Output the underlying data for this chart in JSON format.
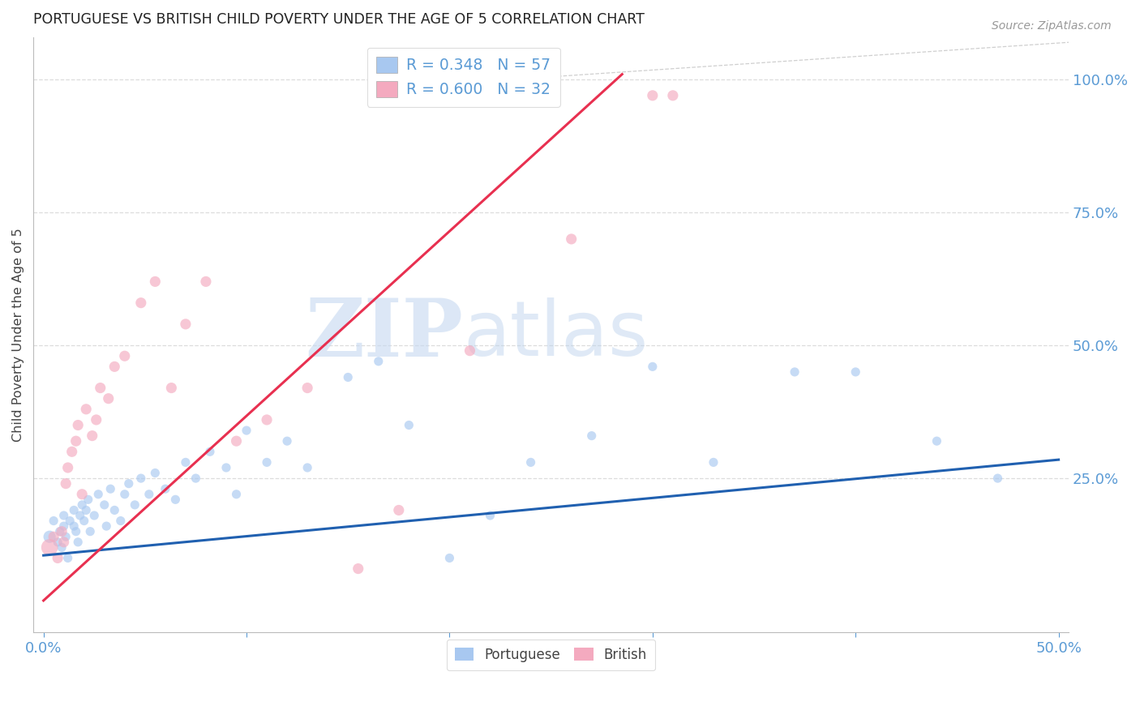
{
  "title": "PORTUGUESE VS BRITISH CHILD POVERTY UNDER THE AGE OF 5 CORRELATION CHART",
  "source": "Source: ZipAtlas.com",
  "ylabel_label": "Child Poverty Under the Age of 5",
  "xlim": [
    -0.005,
    0.505
  ],
  "ylim": [
    -0.04,
    1.08
  ],
  "xticks": [
    0.0,
    0.1,
    0.2,
    0.3,
    0.4,
    0.5
  ],
  "xtick_labels": [
    "0.0%",
    "",
    "",
    "",
    "",
    "50.0%"
  ],
  "ytick_right_labels": [
    "100.0%",
    "75.0%",
    "50.0%",
    "25.0%"
  ],
  "ytick_right_values": [
    1.0,
    0.75,
    0.5,
    0.25
  ],
  "portuguese_color": "#A8C8F0",
  "british_color": "#F4AABF",
  "trend_portuguese_color": "#2060B0",
  "trend_british_color": "#E83050",
  "legend_r_portuguese": "R = 0.348",
  "legend_n_portuguese": "N = 57",
  "legend_r_british": "R = 0.600",
  "legend_n_british": "N = 32",
  "portuguese_x": [
    0.003,
    0.005,
    0.007,
    0.008,
    0.009,
    0.01,
    0.01,
    0.011,
    0.012,
    0.013,
    0.015,
    0.015,
    0.016,
    0.017,
    0.018,
    0.019,
    0.02,
    0.021,
    0.022,
    0.023,
    0.025,
    0.027,
    0.03,
    0.031,
    0.033,
    0.035,
    0.038,
    0.04,
    0.042,
    0.045,
    0.048,
    0.052,
    0.055,
    0.06,
    0.065,
    0.07,
    0.075,
    0.082,
    0.09,
    0.095,
    0.1,
    0.11,
    0.12,
    0.13,
    0.15,
    0.165,
    0.18,
    0.2,
    0.22,
    0.24,
    0.27,
    0.3,
    0.33,
    0.37,
    0.4,
    0.44,
    0.47
  ],
  "portuguese_y": [
    0.14,
    0.17,
    0.13,
    0.15,
    0.12,
    0.16,
    0.18,
    0.14,
    0.1,
    0.17,
    0.16,
    0.19,
    0.15,
    0.13,
    0.18,
    0.2,
    0.17,
    0.19,
    0.21,
    0.15,
    0.18,
    0.22,
    0.2,
    0.16,
    0.23,
    0.19,
    0.17,
    0.22,
    0.24,
    0.2,
    0.25,
    0.22,
    0.26,
    0.23,
    0.21,
    0.28,
    0.25,
    0.3,
    0.27,
    0.22,
    0.34,
    0.28,
    0.32,
    0.27,
    0.44,
    0.47,
    0.35,
    0.1,
    0.18,
    0.28,
    0.33,
    0.46,
    0.28,
    0.45,
    0.45,
    0.32,
    0.25
  ],
  "british_x": [
    0.003,
    0.005,
    0.007,
    0.009,
    0.01,
    0.011,
    0.012,
    0.014,
    0.016,
    0.017,
    0.019,
    0.021,
    0.024,
    0.026,
    0.028,
    0.032,
    0.035,
    0.04,
    0.048,
    0.055,
    0.063,
    0.07,
    0.08,
    0.095,
    0.11,
    0.13,
    0.155,
    0.175,
    0.21,
    0.26,
    0.3,
    0.31
  ],
  "british_y": [
    0.12,
    0.14,
    0.1,
    0.15,
    0.13,
    0.24,
    0.27,
    0.3,
    0.32,
    0.35,
    0.22,
    0.38,
    0.33,
    0.36,
    0.42,
    0.4,
    0.46,
    0.48,
    0.58,
    0.62,
    0.42,
    0.54,
    0.62,
    0.32,
    0.36,
    0.42,
    0.08,
    0.19,
    0.49,
    0.7,
    0.97,
    0.97
  ],
  "portuguese_size": 65,
  "british_size": 90,
  "large_british_size": 220,
  "trend_portuguese": [
    0.0,
    0.5,
    0.105,
    0.285
  ],
  "trend_british": [
    0.0,
    0.285,
    0.02,
    1.01
  ],
  "diag_line": [
    0.19,
    0.505,
    0.99,
    1.07
  ],
  "background_color": "#FFFFFF",
  "grid_color": "#DDDDDD",
  "title_color": "#222222",
  "axis_label_color": "#444444",
  "right_tick_color": "#5B9BD5",
  "bottom_tick_color": "#5B9BD5",
  "watermark_zip": "ZIP",
  "watermark_atlas": "atlas",
  "watermark_color": "#C5D8F0",
  "watermark_alpha": 0.6
}
